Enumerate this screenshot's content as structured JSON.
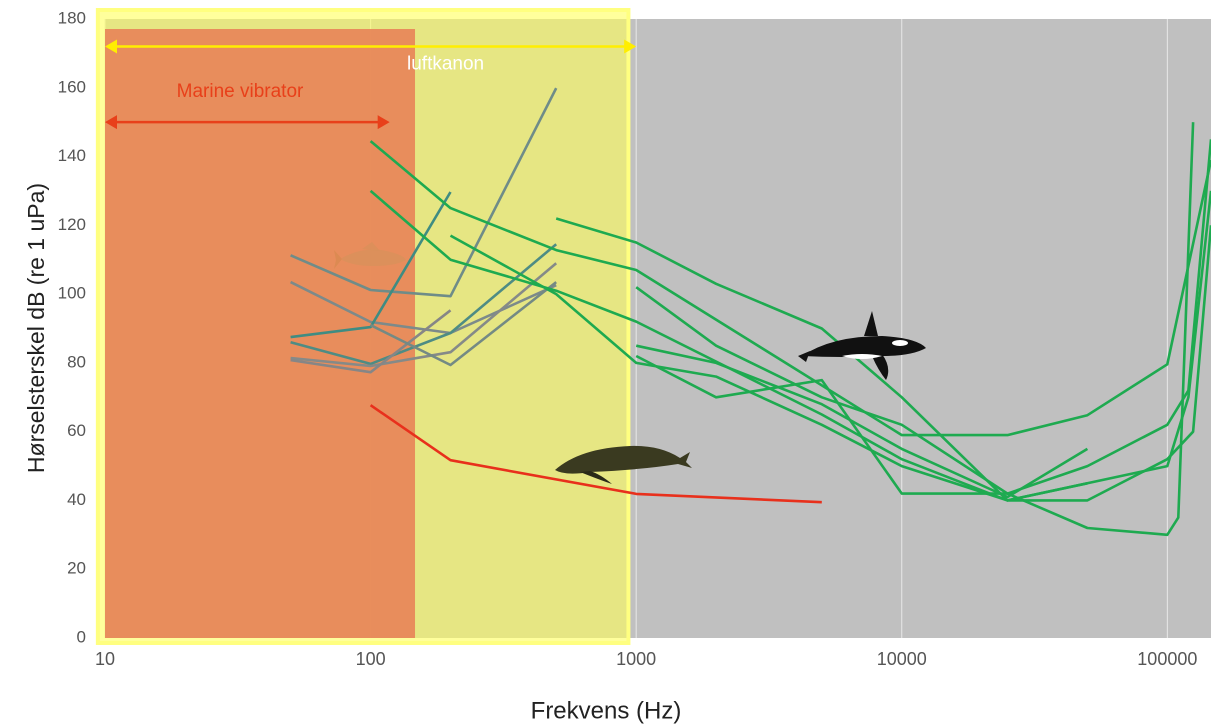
{
  "chart_data": {
    "type": "line",
    "xlabel": "Frekvens (Hz)",
    "ylabel": "Hørselsterskel dB (re 1 uPa)",
    "xscale": "log",
    "xlim": [
      10,
      146000
    ],
    "ylim": [
      0,
      180
    ],
    "xticks": [
      10,
      100,
      1000,
      10000,
      100000
    ],
    "yticks": [
      0,
      20,
      40,
      60,
      80,
      100,
      120,
      140,
      160,
      180
    ],
    "grid": "x",
    "background": "#c0c0c0",
    "bands": [
      {
        "label": "luftkanon",
        "range": [
          9.4,
          935
        ],
        "color": "#ffff5a",
        "label_color": "#ffffff",
        "arrow": [
          10,
          1000
        ],
        "arrow_y": 172,
        "arrow_color": "#ffee00"
      },
      {
        "label": "Marine vibrator",
        "range": [
          10,
          147
        ],
        "color": "#e8885a",
        "label_color": "#e8401a",
        "arrow": [
          10,
          118
        ],
        "arrow_y": 150,
        "arrow_color": "#e8401a"
      }
    ],
    "series": [
      {
        "color": "#6f8c88",
        "x": [
          50,
          100,
          200,
          500
        ],
        "values": [
          111.3,
          101.2,
          99.4,
          159.9
        ]
      },
      {
        "color": "#7c8a8a",
        "x": [
          50,
          100,
          200,
          500
        ],
        "values": [
          103.5,
          91.9,
          88.7,
          102.6
        ]
      },
      {
        "color": "#3f8c82",
        "x": [
          50,
          100,
          200
        ],
        "values": [
          87.5,
          90.4,
          129.7
        ]
      },
      {
        "color": "#4e8c84",
        "x": [
          50,
          100,
          200,
          500
        ],
        "values": [
          86,
          79.7,
          88.7,
          114.5
        ]
      },
      {
        "color": "#858a88",
        "x": [
          50,
          100,
          200,
          500
        ],
        "values": [
          81.4,
          79.1,
          83.1,
          109
        ]
      },
      {
        "color": "#868686",
        "x": [
          50,
          100,
          200
        ],
        "values": [
          80.8,
          77.3,
          95.3
        ]
      },
      {
        "color": "#748a84",
        "x": [
          100,
          200,
          500
        ],
        "values": [
          91,
          79.4,
          103.5
        ]
      },
      {
        "color": "#e8301c",
        "x": [
          100,
          200,
          1000,
          5000
        ],
        "values": [
          67.7,
          51.7,
          41.9,
          39.5
        ]
      },
      {
        "color": "#1eaa50",
        "x": [
          100,
          200,
          500,
          1000,
          10000,
          25000,
          50000,
          100000,
          146000
        ],
        "values": [
          144.5,
          125,
          112.8,
          107,
          59,
          59,
          64.8,
          79.6,
          139
        ]
      },
      {
        "color": "#1eaa50",
        "x": [
          100,
          200,
          500,
          1000,
          5000,
          10000,
          25000,
          100000,
          120000,
          146000
        ],
        "values": [
          130,
          110,
          101,
          92,
          65,
          52,
          40,
          50,
          70,
          130
        ]
      },
      {
        "color": "#1eaa50",
        "x": [
          200,
          500,
          1000,
          2000,
          5000,
          10000,
          25000,
          50000,
          100000,
          125000,
          146000
        ],
        "values": [
          117,
          100,
          80,
          76,
          62,
          50,
          40,
          40,
          52,
          60,
          120
        ]
      },
      {
        "color": "#1eaa50",
        "x": [
          500,
          1000,
          2000,
          5000,
          10000,
          25000,
          50000
        ],
        "values": [
          122,
          115,
          103,
          90,
          70,
          40,
          45
        ]
      },
      {
        "color": "#1eaa50",
        "x": [
          1000,
          2000,
          5000,
          10000,
          25000,
          50000,
          100000,
          110000,
          125000
        ],
        "values": [
          102,
          85,
          70,
          62,
          42,
          32,
          30,
          35,
          150
        ]
      },
      {
        "color": "#1eaa50",
        "x": [
          1000,
          2000,
          5000,
          10000,
          25000,
          50000,
          100000,
          120000,
          146000
        ],
        "values": [
          82,
          70,
          75,
          42,
          42,
          50,
          62,
          72,
          145
        ]
      },
      {
        "color": "#1eaa50",
        "x": [
          1000,
          2000,
          5000,
          10000,
          25000,
          50000
        ],
        "values": [
          85,
          80,
          68,
          55,
          41,
          55
        ]
      }
    ]
  }
}
